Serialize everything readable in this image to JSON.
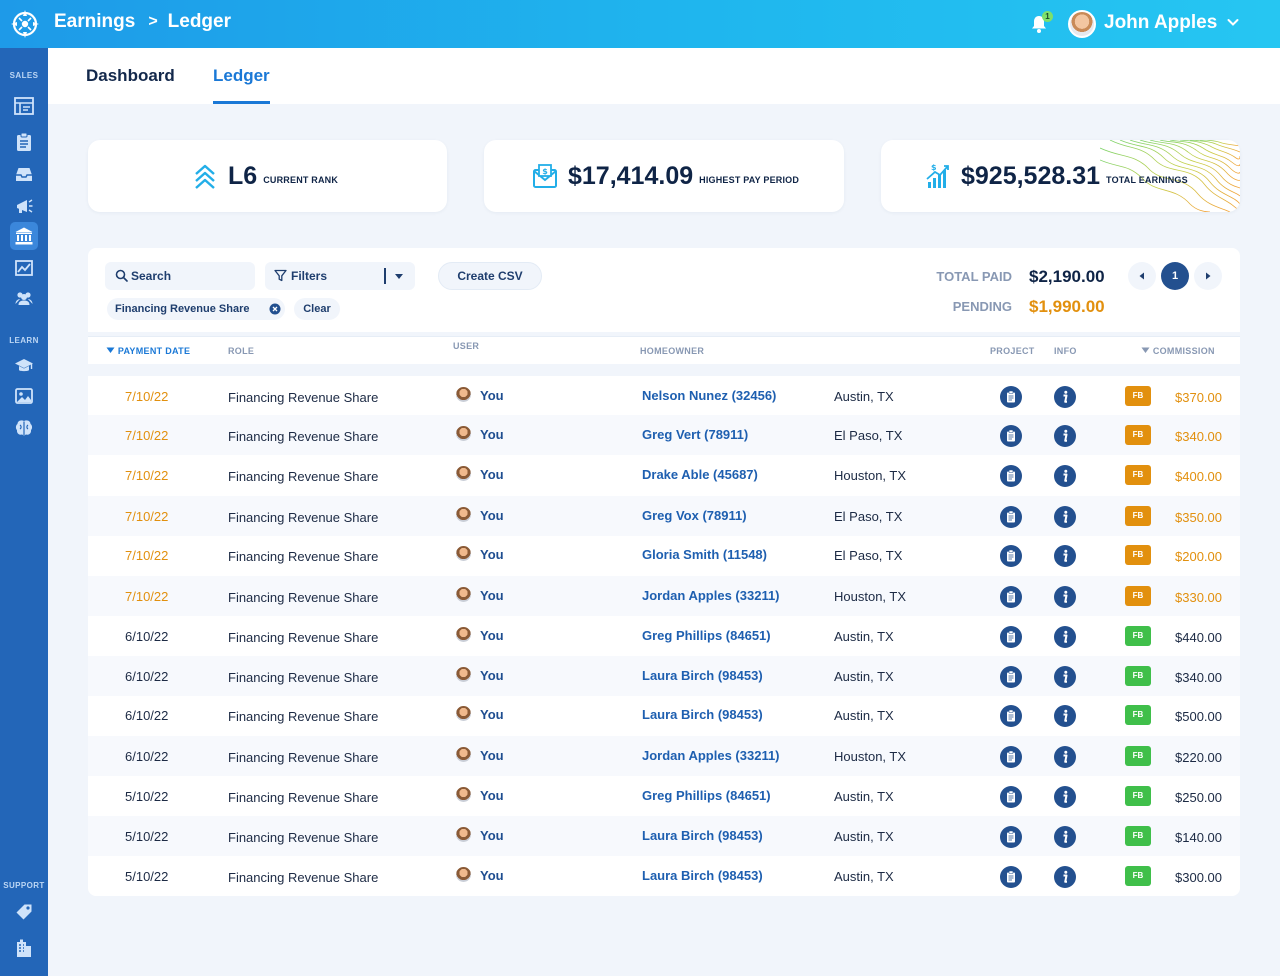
{
  "header": {
    "breadcrumb": [
      "Earnings",
      "Ledger"
    ],
    "breadcrumb_sep": ">",
    "notification_count": "1",
    "user_name": "John Apples"
  },
  "sidebar": {
    "sections": [
      {
        "label": "SALES"
      },
      {
        "label": "LEARN"
      },
      {
        "label": "SUPPORT"
      }
    ],
    "icons": [
      "dashboard-icon",
      "clipboard-icon",
      "inbox-icon",
      "megaphone-icon",
      "bank-icon",
      "chart-icon",
      "team-icon",
      "graduation-cap-icon",
      "image-gallery-icon",
      "brain-icon",
      "tag-icon",
      "building-icon"
    ],
    "active": "bank-icon",
    "active_color": "#3b87db"
  },
  "tabs": [
    {
      "label": "Dashboard",
      "active": false
    },
    {
      "label": "Ledger",
      "active": true
    }
  ],
  "stats": [
    {
      "value": "L6",
      "label": "CURRENT RANK",
      "icon": "chevrons-up-icon"
    },
    {
      "value": "$17,414.09",
      "label": "HIGHEST PAY PERIOD",
      "icon": "money-envelope-icon"
    },
    {
      "value": "$925,528.31",
      "label": "TOTAL EARNINGS",
      "icon": "growth-chart-icon"
    }
  ],
  "toolbar": {
    "search_placeholder": "Search",
    "filters_label": "Filters",
    "csv_label": "Create CSV",
    "active_filter": "Financing Revenue Share",
    "clear_label": "Clear"
  },
  "totals": {
    "paid_label": "TOTAL PAID",
    "paid_value": "$2,190.00",
    "pending_label": "PENDING",
    "pending_value": "$1,990.00",
    "page": "1"
  },
  "colors": {
    "pending": "#e2900e",
    "paid": "#3fbf4a",
    "accent": "#1a78d6"
  },
  "table": {
    "columns": {
      "payment_date": "PAYMENT DATE",
      "role": "ROLE",
      "user": "USER",
      "homeowner": "HOMEOWNER",
      "project": "PROJECT",
      "info": "INFO",
      "commission": "COMMISSION"
    },
    "rows": [
      {
        "date": "7/10/22",
        "role": "Financing Revenue Share",
        "user": "You",
        "homeowner": "Nelson Nunez (32456)",
        "city": "Austin, TX",
        "badge": "FB",
        "amount": "$370.00",
        "status": "pending"
      },
      {
        "date": "7/10/22",
        "role": "Financing Revenue Share",
        "user": "You",
        "homeowner": "Greg Vert (78911)",
        "city": "El Paso, TX",
        "badge": "FB",
        "amount": "$340.00",
        "status": "pending"
      },
      {
        "date": "7/10/22",
        "role": "Financing Revenue Share",
        "user": "You",
        "homeowner": "Drake Able (45687)",
        "city": "Houston, TX",
        "badge": "FB",
        "amount": "$400.00",
        "status": "pending"
      },
      {
        "date": "7/10/22",
        "role": "Financing Revenue Share",
        "user": "You",
        "homeowner": "Greg Vox (78911)",
        "city": "El Paso, TX",
        "badge": "FB",
        "amount": "$350.00",
        "status": "pending"
      },
      {
        "date": "7/10/22",
        "role": "Financing Revenue Share",
        "user": "You",
        "homeowner": "Gloria Smith (11548)",
        "city": "El Paso, TX",
        "badge": "FB",
        "amount": "$200.00",
        "status": "pending"
      },
      {
        "date": "7/10/22",
        "role": "Financing Revenue Share",
        "user": "You",
        "homeowner": "Jordan Apples (33211)",
        "city": "Houston, TX",
        "badge": "FB",
        "amount": "$330.00",
        "status": "pending"
      },
      {
        "date": "6/10/22",
        "role": "Financing Revenue Share",
        "user": "You",
        "homeowner": "Greg Phillips (84651)",
        "city": "Austin, TX",
        "badge": "FB",
        "amount": "$440.00",
        "status": "paid"
      },
      {
        "date": "6/10/22",
        "role": "Financing Revenue Share",
        "user": "You",
        "homeowner": "Laura Birch (98453)",
        "city": "Austin, TX",
        "badge": "FB",
        "amount": "$340.00",
        "status": "paid"
      },
      {
        "date": "6/10/22",
        "role": "Financing Revenue Share",
        "user": "You",
        "homeowner": "Laura Birch (98453)",
        "city": "Austin, TX",
        "badge": "FB",
        "amount": "$500.00",
        "status": "paid"
      },
      {
        "date": "6/10/22",
        "role": "Financing Revenue Share",
        "user": "You",
        "homeowner": "Jordan Apples (33211)",
        "city": "Houston, TX",
        "badge": "FB",
        "amount": "$220.00",
        "status": "paid"
      },
      {
        "date": "5/10/22",
        "role": "Financing Revenue Share",
        "user": "You",
        "homeowner": "Greg Phillips (84651)",
        "city": "Austin, TX",
        "badge": "FB",
        "amount": "$250.00",
        "status": "paid"
      },
      {
        "date": "5/10/22",
        "role": "Financing Revenue Share",
        "user": "You",
        "homeowner": "Laura Birch (98453)",
        "city": "Austin, TX",
        "badge": "FB",
        "amount": "$140.00",
        "status": "paid"
      },
      {
        "date": "5/10/22",
        "role": "Financing Revenue Share",
        "user": "You",
        "homeowner": "Laura Birch (98453)",
        "city": "Austin, TX",
        "badge": "FB",
        "amount": "$300.00",
        "status": "paid"
      }
    ]
  }
}
